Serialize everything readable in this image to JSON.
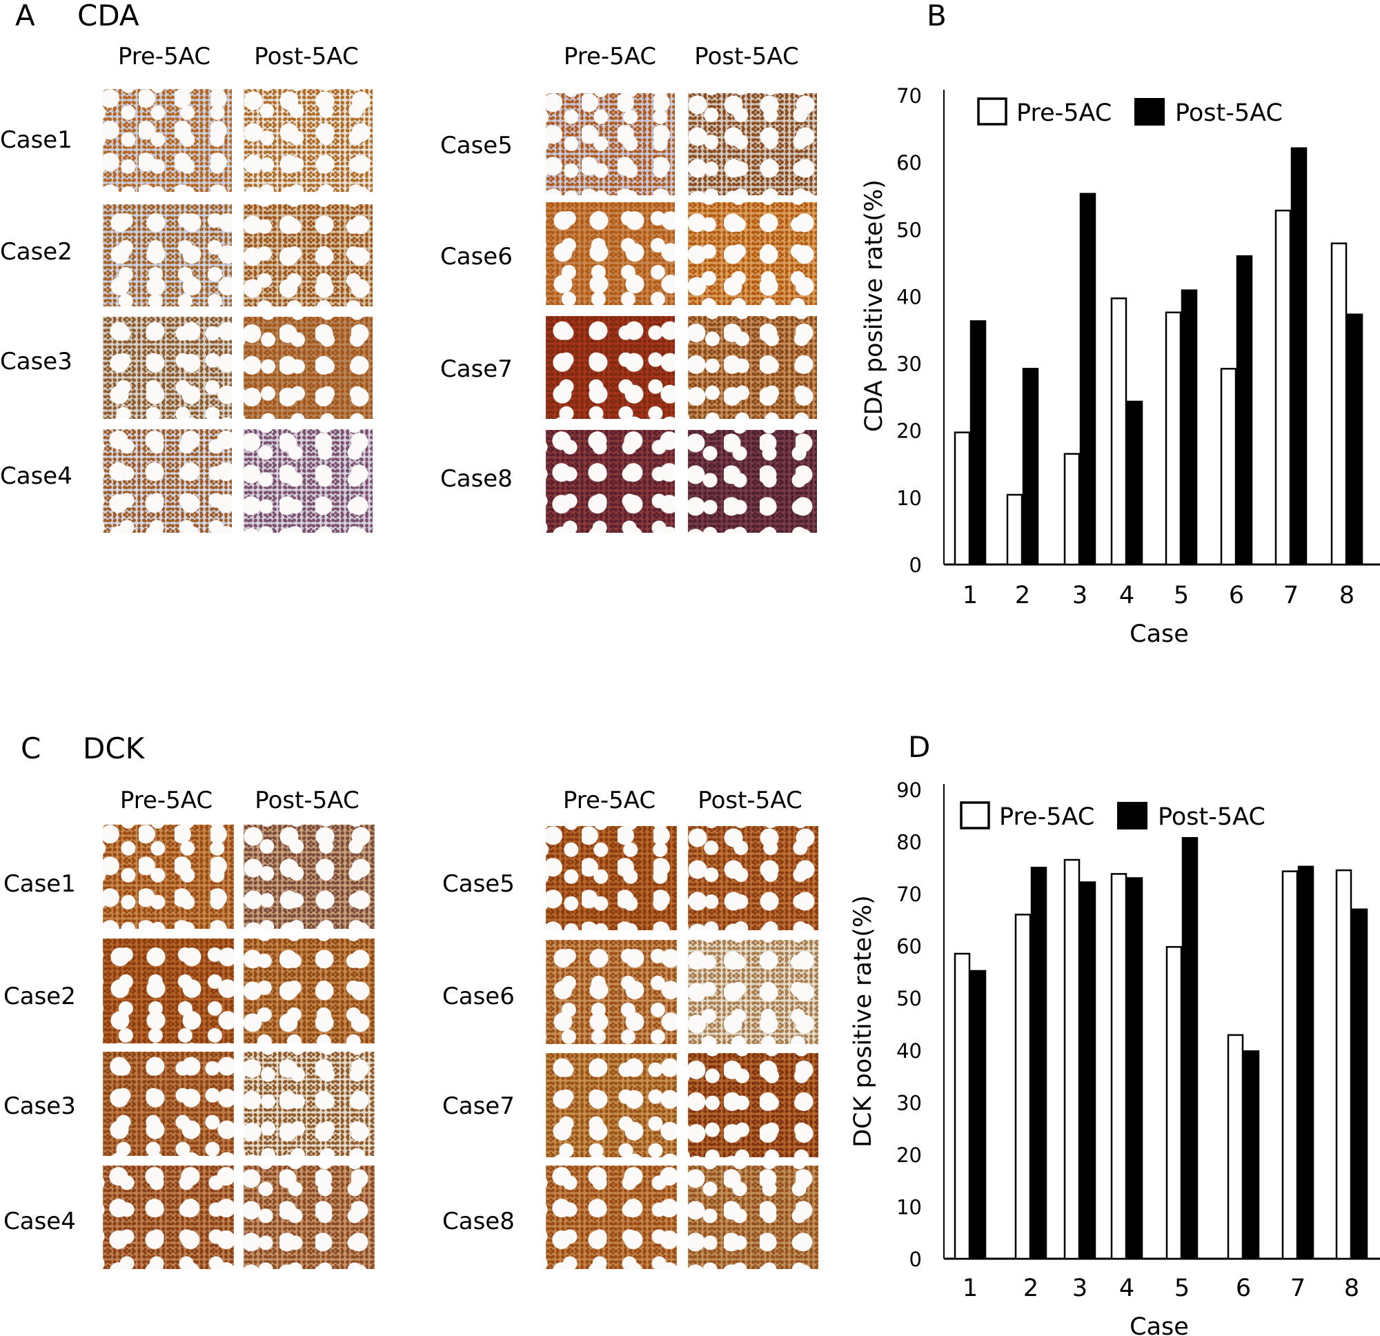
{
  "panels": {
    "a": {
      "letter": "A",
      "title": "CDA",
      "left_headers": [
        "Pre-5AC",
        "Post-5AC"
      ],
      "right_headers": [
        "Pre-5AC",
        "Post-5AC"
      ],
      "left_cases": [
        "Case1",
        "Case2",
        "Case3",
        "Case4"
      ],
      "right_cases": [
        "Case5",
        "Case6",
        "Case7",
        "Case8"
      ]
    },
    "b": {
      "letter": "B"
    },
    "c": {
      "letter": "C",
      "title": "DCK",
      "left_headers": [
        "Pre-5AC",
        "Post-5AC"
      ],
      "right_headers": [
        "Pre-5AC",
        "Post-5AC"
      ],
      "left_cases": [
        "Case1",
        "Case2",
        "Case3",
        "Case4"
      ],
      "right_cases": [
        "Case5",
        "Case6",
        "Case7",
        "Case8"
      ]
    },
    "d": {
      "letter": "D"
    }
  },
  "stain_colors": {
    "a": [
      [
        "#c7d0e4",
        "#b8651c"
      ],
      [
        "#e6e3dc",
        "#b06a22"
      ],
      [
        "#c9d3e8",
        "#a8621f"
      ],
      [
        "#d6c4a8",
        "#a0561a"
      ],
      [
        "#d8d2cc",
        "#8d5a2a"
      ],
      [
        "#b8865a",
        "#a3561a"
      ],
      [
        "#d3d9e9",
        "#a05a22"
      ],
      [
        "#d7d3de",
        "#7b4f6e"
      ],
      [
        "#c9c9dd",
        "#b05a1c"
      ],
      [
        "#d2c9c0",
        "#8a4a1c"
      ],
      [
        "#c98752",
        "#b15a14"
      ],
      [
        "#d9a060",
        "#b35a10"
      ],
      [
        "#a8341c",
        "#7c2a10"
      ],
      [
        "#c88e5c",
        "#8a4a18"
      ],
      [
        "#8a3a38",
        "#5a2030"
      ],
      [
        "#7a3c46",
        "#4e2032"
      ]
    ],
    "c": [
      [
        "#c8884c",
        "#9a4a14"
      ],
      [
        "#c8a07a",
        "#7a4a3a"
      ],
      [
        "#b9662a",
        "#8a3e10"
      ],
      [
        "#c8874a",
        "#8f4a16"
      ],
      [
        "#c07a46",
        "#8a4416"
      ],
      [
        "#e6dccb",
        "#8e5a2a"
      ],
      [
        "#c08050",
        "#8a4016"
      ],
      [
        "#c8956a",
        "#8a4a24"
      ],
      [
        "#b8692a",
        "#8a3c10"
      ],
      [
        "#c07236",
        "#8a3c12"
      ],
      [
        "#c8925a",
        "#9c5018"
      ],
      [
        "#e4dccb",
        "#a87a4a"
      ],
      [
        "#c6904e",
        "#9a5218"
      ],
      [
        "#b8672c",
        "#7e3410"
      ],
      [
        "#c4864a",
        "#9a4a14"
      ],
      [
        "#c0925a",
        "#955020"
      ]
    ]
  },
  "chart_data": [
    {
      "type": "bar",
      "title": "",
      "xlabel": "Case",
      "ylabel": "CDA positive rate(%)",
      "categories": [
        "1",
        "2",
        "3",
        "4",
        "5",
        "6",
        "7",
        "8"
      ],
      "ylim": [
        0,
        70
      ],
      "yticks": [
        "0",
        "10",
        "20",
        "30",
        "40",
        "50",
        "60",
        "70"
      ],
      "legend": "top",
      "grid": false,
      "series": [
        {
          "name": "Pre-5AC",
          "color": "#ffffff",
          "values": [
            19.7,
            10.4,
            16.5,
            39.7,
            37.6,
            29.2,
            52.8,
            47.9
          ]
        },
        {
          "name": "Post-5AC",
          "color": "#000000",
          "values": [
            36.3,
            29.2,
            55.3,
            24.3,
            40.9,
            46.0,
            62.1,
            37.3
          ]
        }
      ]
    },
    {
      "type": "bar",
      "title": "",
      "xlabel": "Case",
      "ylabel": "DCK positive rate(%)",
      "categories": [
        "1",
        "2",
        "3",
        "4",
        "5",
        "6",
        "7",
        "8"
      ],
      "ylim": [
        0,
        90
      ],
      "yticks": [
        "0",
        "10",
        "20",
        "30",
        "40",
        "50",
        "60",
        "70",
        "80",
        "90"
      ],
      "legend": "top",
      "grid": false,
      "series": [
        {
          "name": "Pre-5AC",
          "color": "#ffffff",
          "values": [
            58.5,
            66.0,
            76.5,
            73.8,
            59.8,
            42.9,
            74.3,
            74.5
          ]
        },
        {
          "name": "Post-5AC",
          "color": "#000000",
          "values": [
            55.2,
            75.0,
            72.2,
            73.0,
            80.7,
            39.8,
            75.2,
            67.0
          ]
        }
      ]
    }
  ]
}
